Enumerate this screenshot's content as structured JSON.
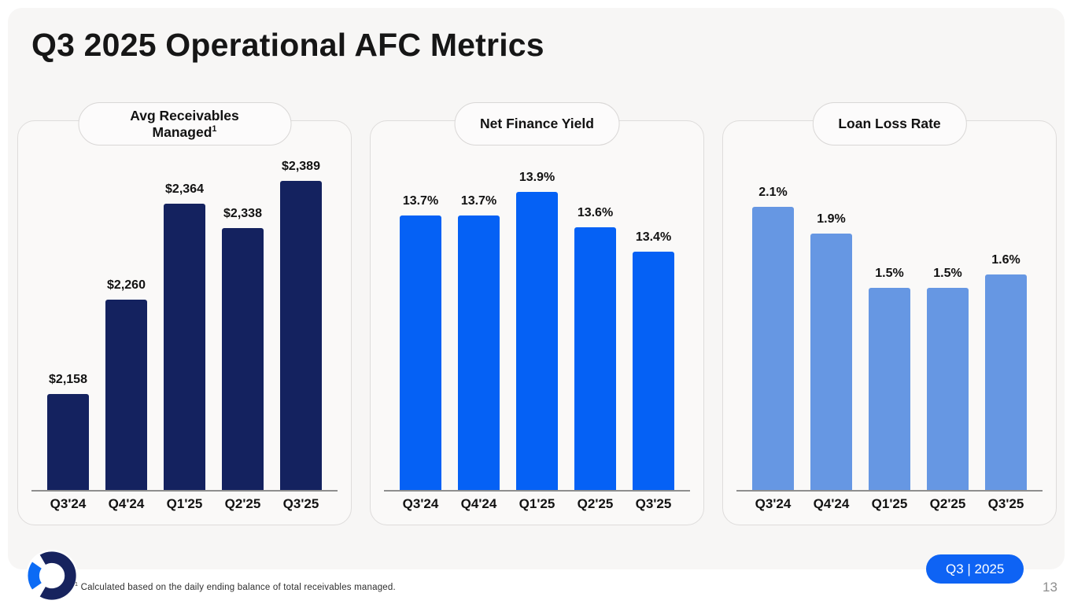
{
  "slide": {
    "title": "Q3 2025 Operational AFC Metrics",
    "footnote": {
      "sup": "1",
      "text": " Calculated based on the daily ending balance of total receivables managed."
    },
    "badge_label": "Q3 | 2025",
    "page_number": "13"
  },
  "logo": {
    "icon": "ring-logo-icon",
    "colors": {
      "navy": "#17235e",
      "blue": "#0c6bf5"
    }
  },
  "colors": {
    "slide_background": "#f7f6f5",
    "navy_bar": "#14225f",
    "bright_blue_bar": "#0561f5",
    "light_blue_bar": "#6697e3",
    "badge_blue": "#0e63f4",
    "axis_line": "#8f8f8f"
  },
  "chart_data": [
    {
      "type": "bar",
      "title": "Avg Receivables Managed",
      "title_sup": "1",
      "categories": [
        "Q3'24",
        "Q4'24",
        "Q1'25",
        "Q2'25",
        "Q3'25"
      ],
      "values": [
        2158,
        2260,
        2364,
        2338,
        2389
      ],
      "value_labels": [
        "$2,158",
        "$2,260",
        "$2,364",
        "$2,338",
        "$2,389"
      ],
      "bar_color": "#14225f",
      "ylim": [
        2054,
        2389
      ],
      "grid": false,
      "legend": false
    },
    {
      "type": "bar",
      "title": "Net Finance Yield",
      "categories": [
        "Q3'24",
        "Q4'24",
        "Q1'25",
        "Q2'25",
        "Q3'25"
      ],
      "values": [
        13.7,
        13.7,
        13.9,
        13.6,
        13.4
      ],
      "value_labels": [
        "13.7%",
        "13.7%",
        "13.9%",
        "13.6%",
        "13.4%"
      ],
      "bar_color": "#0561f5",
      "ylim": [
        11.4,
        13.9
      ],
      "grid": false,
      "legend": false
    },
    {
      "type": "bar",
      "title": "Loan Loss Rate",
      "categories": [
        "Q3'24",
        "Q4'24",
        "Q1'25",
        "Q2'25",
        "Q3'25"
      ],
      "values": [
        2.1,
        1.9,
        1.5,
        1.5,
        1.6
      ],
      "value_labels": [
        "2.1%",
        "1.9%",
        "1.5%",
        "1.5%",
        "1.6%"
      ],
      "bar_color": "#6697e3",
      "ylim": [
        0,
        2.1
      ],
      "grid": false,
      "legend": false
    }
  ]
}
